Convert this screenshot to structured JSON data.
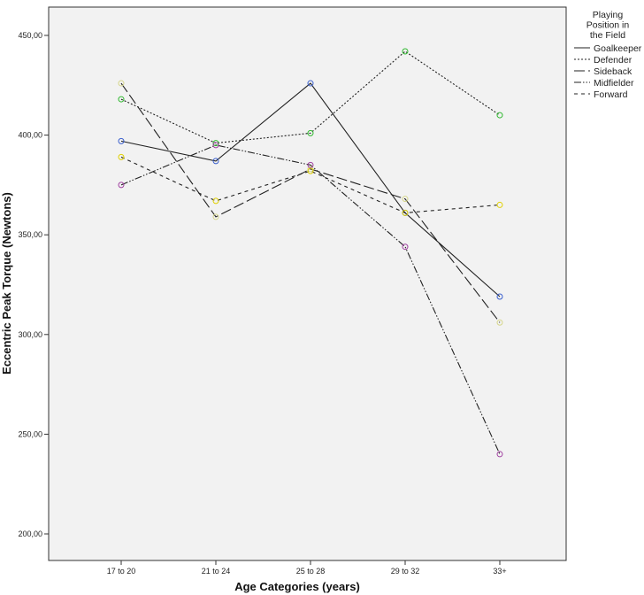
{
  "chart_data": {
    "type": "line",
    "xlabel": "Age Categories (years)",
    "ylabel": "Eccentric Peak Torque (Newtons)",
    "categories": [
      "17 to 20",
      "21 to 24",
      "25 to 28",
      "29 to 32",
      "33+"
    ],
    "ylim": [
      175,
      465
    ],
    "yticks": [
      200,
      250,
      300,
      350,
      400,
      450
    ],
    "ytick_labels": [
      "200,00",
      "250,00",
      "300,00",
      "350,00",
      "400,00",
      "450,00"
    ],
    "legend_title_lines": [
      "Playing",
      "Position in",
      "the Field"
    ],
    "legend_position": "top-right",
    "grid": false,
    "background_color": "#f2f2f2",
    "series": [
      {
        "name": "Goalkeeper",
        "dash": "solid",
        "marker_color": "#3a5fcd",
        "values": [
          397,
          387,
          426,
          361,
          319
        ]
      },
      {
        "name": "Defender",
        "dash": "dotted",
        "marker_color": "#2eb82e",
        "values": [
          418,
          396,
          401,
          442,
          410
        ]
      },
      {
        "name": "Sideback",
        "dash": "long-dash",
        "marker_color": "#d6d68a",
        "values": [
          426,
          359,
          383,
          368,
          306
        ]
      },
      {
        "name": "Midfielder",
        "dash": "dash-dot-dot",
        "marker_color": "#a040a0",
        "values": [
          375,
          395,
          385,
          344,
          240
        ]
      },
      {
        "name": "Forward",
        "dash": "short-dash",
        "marker_color": "#e0d000",
        "values": [
          389,
          367,
          382,
          361,
          365
        ]
      }
    ]
  }
}
